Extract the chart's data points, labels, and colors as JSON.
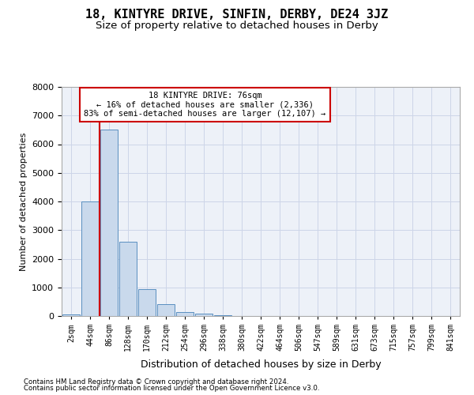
{
  "title": "18, KINTYRE DRIVE, SINFIN, DERBY, DE24 3JZ",
  "subtitle": "Size of property relative to detached houses in Derby",
  "xlabel": "Distribution of detached houses by size in Derby",
  "ylabel": "Number of detached properties",
  "bin_labels": [
    "2sqm",
    "44sqm",
    "86sqm",
    "128sqm",
    "170sqm",
    "212sqm",
    "254sqm",
    "296sqm",
    "338sqm",
    "380sqm",
    "422sqm",
    "464sqm",
    "506sqm",
    "547sqm",
    "589sqm",
    "631sqm",
    "673sqm",
    "715sqm",
    "757sqm",
    "799sqm",
    "841sqm"
  ],
  "bar_values": [
    50,
    4000,
    6500,
    2600,
    950,
    420,
    130,
    80,
    20,
    5,
    3,
    2,
    1,
    0,
    0,
    0,
    0,
    0,
    0,
    0,
    0
  ],
  "bar_color": "#c9d9ec",
  "bar_edge_color": "#5a8fc0",
  "vline_color": "#cc0000",
  "vline_pos": 1.5,
  "annotation_text": "18 KINTYRE DRIVE: 76sqm\n← 16% of detached houses are smaller (2,336)\n83% of semi-detached houses are larger (12,107) →",
  "annotation_box_edgecolor": "#cc0000",
  "ylim_max": 8000,
  "yticks": [
    0,
    1000,
    2000,
    3000,
    4000,
    5000,
    6000,
    7000,
    8000
  ],
  "grid_color": "#cdd5e8",
  "bg_color": "#edf1f8",
  "footer1": "Contains HM Land Registry data © Crown copyright and database right 2024.",
  "footer2": "Contains public sector information licensed under the Open Government Licence v3.0.",
  "title_fontsize": 11,
  "subtitle_fontsize": 9.5,
  "xlabel_fontsize": 9,
  "ylabel_fontsize": 8
}
